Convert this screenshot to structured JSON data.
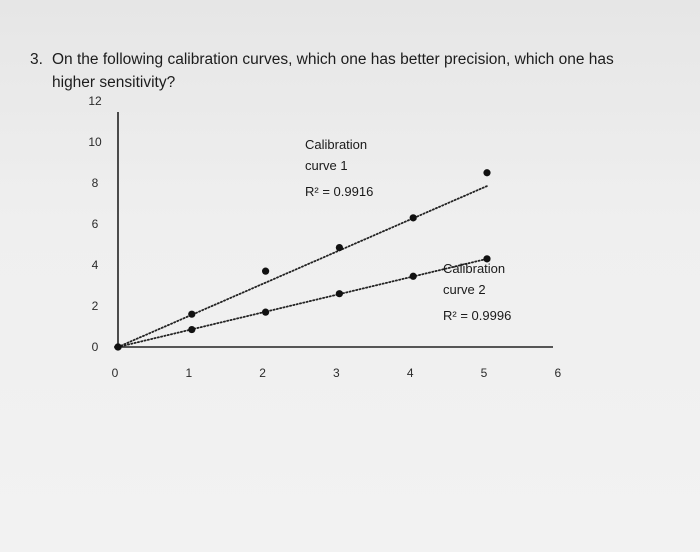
{
  "question": {
    "number": "3.",
    "text": "On the following calibration curves, which one has better precision, which one has higher sensitivity?"
  },
  "chart_data": {
    "type": "scatter",
    "xlim": [
      0,
      6
    ],
    "ylim": [
      0,
      12
    ],
    "x_ticks": [
      "0",
      "1",
      "2",
      "3",
      "4",
      "5",
      "6"
    ],
    "y_ticks": [
      "0",
      "2",
      "4",
      "6",
      "8",
      "10",
      "12"
    ],
    "trendline_style": "dotted",
    "series": [
      {
        "name": "Calibration curve 1",
        "label_lines": [
          "Calibration",
          "curve 1"
        ],
        "r2_text": "R² = 0.9916",
        "color": "#111111",
        "points": [
          [
            0,
            0
          ],
          [
            1,
            1.6
          ],
          [
            2,
            3.7
          ],
          [
            3,
            4.85
          ],
          [
            4,
            6.3
          ],
          [
            5,
            8.5
          ]
        ],
        "fit": [
          [
            0,
            0
          ],
          [
            5,
            7.85
          ]
        ]
      },
      {
        "name": "Calibration curve 2",
        "label_lines": [
          "Calibration",
          "curve 2"
        ],
        "r2_text": "R² = 0.9996",
        "color": "#111111",
        "points": [
          [
            0,
            0
          ],
          [
            1,
            0.85
          ],
          [
            2,
            1.7
          ],
          [
            3,
            2.6
          ],
          [
            4,
            3.45
          ],
          [
            5,
            4.3
          ]
        ],
        "fit": [
          [
            0,
            0
          ],
          [
            5,
            4.3
          ]
        ]
      }
    ]
  }
}
